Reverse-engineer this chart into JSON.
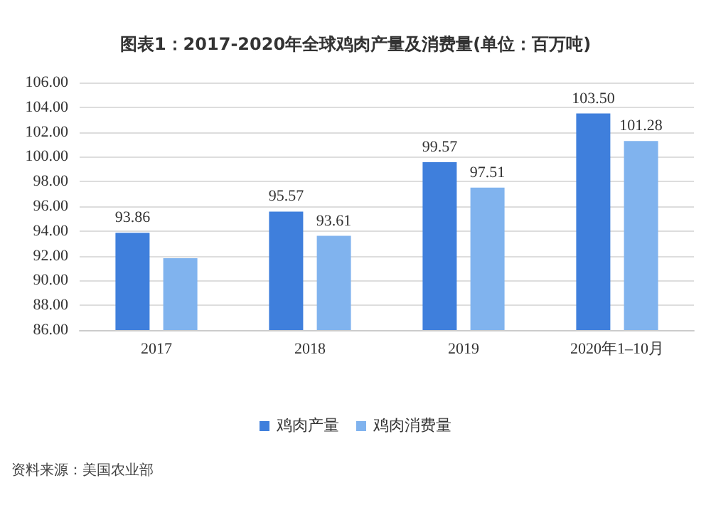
{
  "chart_data": {
    "type": "bar",
    "title": "图表1：2017-2020年全球鸡肉产量及消费量(单位：百万吨)",
    "categories": [
      "2017",
      "2018",
      "2019",
      "2020年1–10月"
    ],
    "series": [
      {
        "name": "鸡肉产量",
        "color": "#3f7fdc",
        "values": [
          93.86,
          95.57,
          99.57,
          103.5
        ],
        "value_labels": [
          "93.86",
          "95.57",
          "99.57",
          "103.50"
        ]
      },
      {
        "name": "鸡肉消费量",
        "color": "#80b3ee",
        "values": [
          91.8,
          93.61,
          97.51,
          101.28
        ],
        "value_labels": [
          null,
          "93.61",
          "97.51",
          "101.28"
        ]
      }
    ],
    "ylim": [
      86,
      106
    ],
    "yticks": [
      {
        "value": 86,
        "label": "86.00"
      },
      {
        "value": 88,
        "label": "88.00"
      },
      {
        "value": 90,
        "label": "90.00"
      },
      {
        "value": 92,
        "label": "92.00"
      },
      {
        "value": 94,
        "label": "94.00"
      },
      {
        "value": 96,
        "label": "96.00"
      },
      {
        "value": 98,
        "label": "98.00"
      },
      {
        "value": 100,
        "label": "100.00"
      },
      {
        "value": 102,
        "label": "102.00"
      },
      {
        "value": 104,
        "label": "104.00"
      },
      {
        "value": 106,
        "label": "106.00"
      }
    ],
    "grid": "y",
    "legend": "bottom",
    "annotations": [
      "资料来源：美国农业部"
    ]
  }
}
